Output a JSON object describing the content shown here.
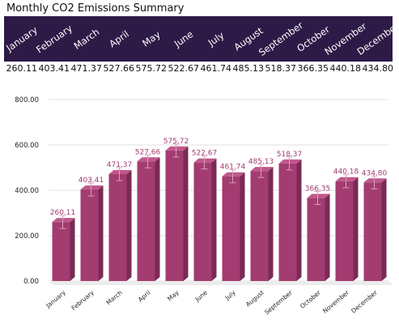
{
  "title": "Monthly CO2 Emissions Summary",
  "colors": {
    "header_bg": "#2e1a47",
    "bar": "#a33c70",
    "bar_side": "#7a2a55",
    "bar_top": "#c0578c",
    "label": "#a33c70",
    "grid": "#e2e2e2"
  },
  "table": {
    "months": [
      "January",
      "February",
      "March",
      "April",
      "May",
      "June",
      "July",
      "August",
      "September",
      "October",
      "November",
      "December"
    ],
    "values": [
      "260.11",
      "403.41",
      "471.37",
      "527.66",
      "575.72",
      "522.67",
      "461.74",
      "485.13",
      "518.37",
      "366.35",
      "440.18",
      "434.80"
    ]
  },
  "chart_data": {
    "type": "bar",
    "categories": [
      "January",
      "February",
      "March",
      "April",
      "May",
      "June",
      "July",
      "August",
      "September",
      "October",
      "November",
      "December"
    ],
    "values": [
      260.11,
      403.41,
      471.37,
      527.66,
      575.72,
      522.67,
      461.74,
      485.13,
      518.37,
      366.35,
      440.18,
      434.8
    ],
    "data_labels": [
      "260.11",
      "403.41",
      "471.37",
      "527.66",
      "575.72",
      "522.67",
      "461.74",
      "485.13",
      "518.37",
      "366.35",
      "440.18",
      "434.80"
    ],
    "yticks": [
      "0.00",
      "200.00",
      "400.00",
      "600.00",
      "800.00"
    ],
    "ylim": [
      0,
      800
    ],
    "grid": true,
    "error_bars": true,
    "style": "3d"
  }
}
